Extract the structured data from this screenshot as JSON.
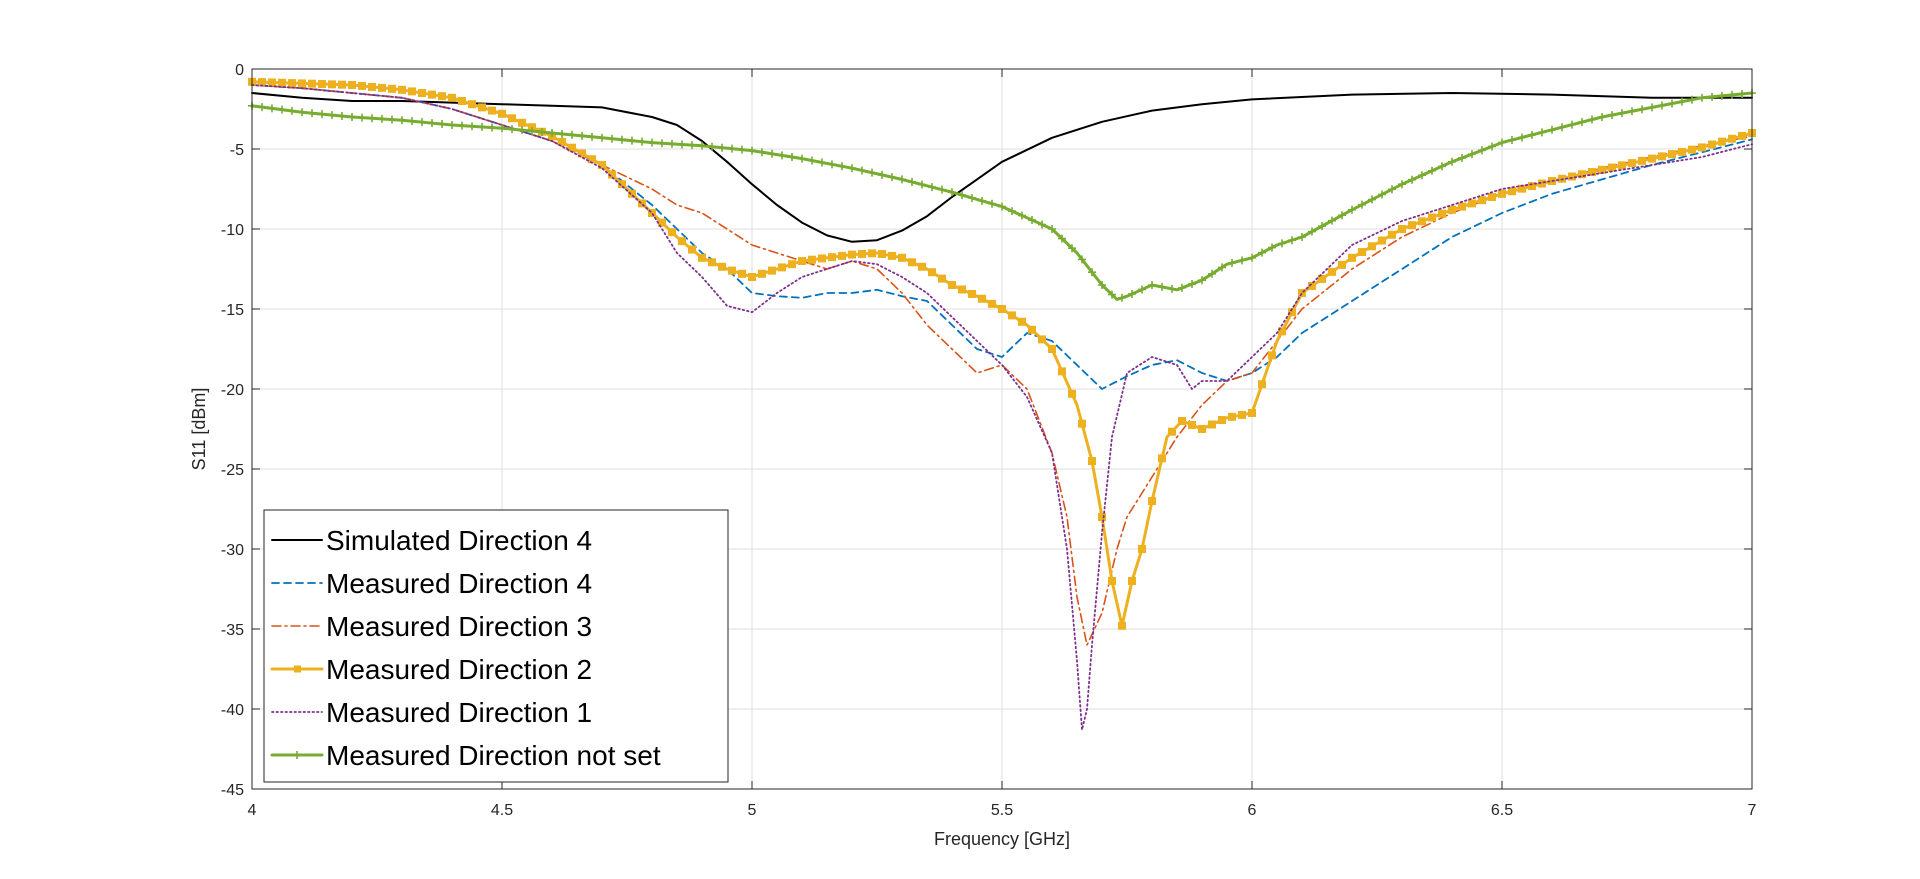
{
  "chart_data": {
    "type": "line",
    "title": "",
    "xlabel": "Frequency [GHz]",
    "ylabel": "S11 [dBm]",
    "xlim": [
      4,
      7
    ],
    "ylim": [
      -45,
      0
    ],
    "xticks": [
      "4",
      "4.5",
      "5",
      "5.5",
      "6",
      "6.5",
      "7"
    ],
    "yticks": [
      "0",
      "-5",
      "-10",
      "-15",
      "-20",
      "-25",
      "-30",
      "-35",
      "-40",
      "-45"
    ],
    "grid": true,
    "legend_position": "bottom-left",
    "series": [
      {
        "name": "Simulated Direction 4",
        "color": "#000000",
        "style": "solid",
        "marker": "none",
        "x": [
          4.0,
          4.1,
          4.2,
          4.3,
          4.4,
          4.5,
          4.6,
          4.7,
          4.8,
          4.85,
          4.9,
          4.95,
          5.0,
          5.05,
          5.1,
          5.15,
          5.2,
          5.25,
          5.3,
          5.35,
          5.4,
          5.45,
          5.5,
          5.6,
          5.7,
          5.8,
          5.9,
          6.0,
          6.2,
          6.4,
          6.6,
          6.8,
          7.0
        ],
        "y": [
          -1.5,
          -1.8,
          -2.0,
          -2.0,
          -2.1,
          -2.2,
          -2.3,
          -2.4,
          -3.0,
          -3.5,
          -4.5,
          -5.8,
          -7.2,
          -8.5,
          -9.6,
          -10.4,
          -10.8,
          -10.7,
          -10.1,
          -9.2,
          -8.0,
          -6.9,
          -5.8,
          -4.3,
          -3.3,
          -2.6,
          -2.2,
          -1.9,
          -1.6,
          -1.5,
          -1.6,
          -1.8,
          -1.8
        ]
      },
      {
        "name": "Measured Direction 4",
        "color": "#0072BD",
        "style": "dashed",
        "marker": "none",
        "x": [
          4.0,
          4.1,
          4.2,
          4.3,
          4.4,
          4.5,
          4.6,
          4.7,
          4.8,
          4.85,
          4.9,
          4.95,
          5.0,
          5.05,
          5.1,
          5.15,
          5.2,
          5.25,
          5.3,
          5.35,
          5.4,
          5.45,
          5.5,
          5.55,
          5.6,
          5.65,
          5.7,
          5.75,
          5.8,
          5.85,
          5.9,
          5.95,
          6.0,
          6.05,
          6.1,
          6.2,
          6.3,
          6.4,
          6.5,
          6.6,
          6.7,
          6.8,
          6.9,
          7.0
        ],
        "y": [
          -1.0,
          -1.2,
          -1.5,
          -1.8,
          -2.5,
          -3.5,
          -4.5,
          -6.0,
          -8.5,
          -10.0,
          -11.5,
          -12.5,
          -14.0,
          -14.2,
          -14.3,
          -14.0,
          -14.0,
          -13.8,
          -14.2,
          -14.5,
          -16.0,
          -17.5,
          -18.0,
          -16.5,
          -17.0,
          -18.5,
          -20.0,
          -19.2,
          -18.5,
          -18.2,
          -19.0,
          -19.5,
          -19.0,
          -18.0,
          -16.5,
          -14.5,
          -12.5,
          -10.5,
          -9.0,
          -7.8,
          -6.9,
          -6.0,
          -5.2,
          -4.4
        ]
      },
      {
        "name": "Measured Direction 3",
        "color": "#D95319",
        "style": "dashdot",
        "marker": "none",
        "x": [
          4.0,
          4.1,
          4.2,
          4.3,
          4.4,
          4.5,
          4.6,
          4.7,
          4.8,
          4.85,
          4.9,
          4.95,
          5.0,
          5.05,
          5.1,
          5.15,
          5.2,
          5.25,
          5.3,
          5.35,
          5.4,
          5.45,
          5.5,
          5.55,
          5.6,
          5.63,
          5.65,
          5.67,
          5.7,
          5.73,
          5.75,
          5.8,
          5.85,
          5.9,
          5.95,
          6.0,
          6.05,
          6.1,
          6.2,
          6.3,
          6.4,
          6.5,
          6.6,
          6.7,
          6.8,
          6.9,
          7.0
        ],
        "y": [
          -1.0,
          -1.2,
          -1.5,
          -1.8,
          -2.5,
          -3.5,
          -4.5,
          -6.0,
          -7.5,
          -8.5,
          -9.0,
          -10.0,
          -11.0,
          -11.5,
          -12.0,
          -12.5,
          -12.0,
          -12.5,
          -14.0,
          -16.0,
          -17.5,
          -19.0,
          -18.5,
          -20.0,
          -24.0,
          -28.0,
          -33.0,
          -36.0,
          -34.0,
          -30.0,
          -28.0,
          -25.5,
          -23.0,
          -21.0,
          -19.5,
          -19.0,
          -17.0,
          -15.0,
          -12.5,
          -10.5,
          -9.0,
          -7.8,
          -7.0,
          -6.2,
          -5.5,
          -4.8,
          -4.2
        ]
      },
      {
        "name": "Measured Direction 2",
        "color": "#EDB120",
        "style": "solid-thick",
        "marker": "square",
        "x": [
          4.0,
          4.1,
          4.2,
          4.3,
          4.4,
          4.5,
          4.6,
          4.7,
          4.75,
          4.8,
          4.85,
          4.9,
          4.95,
          5.0,
          5.05,
          5.1,
          5.15,
          5.2,
          5.25,
          5.3,
          5.35,
          5.4,
          5.45,
          5.5,
          5.55,
          5.6,
          5.65,
          5.68,
          5.7,
          5.72,
          5.74,
          5.76,
          5.78,
          5.8,
          5.83,
          5.86,
          5.9,
          5.95,
          6.0,
          6.05,
          6.1,
          6.2,
          6.3,
          6.4,
          6.5,
          6.6,
          6.7,
          6.8,
          6.9,
          7.0
        ],
        "y": [
          -0.8,
          -0.9,
          -1.0,
          -1.3,
          -1.8,
          -2.8,
          -4.2,
          -6.0,
          -7.5,
          -9.0,
          -10.5,
          -11.8,
          -12.5,
          -13.0,
          -12.5,
          -12.0,
          -11.8,
          -11.6,
          -11.5,
          -11.8,
          -12.5,
          -13.5,
          -14.2,
          -15.0,
          -16.0,
          -17.5,
          -21.0,
          -24.5,
          -28.0,
          -32.0,
          -34.8,
          -32.0,
          -30.0,
          -27.0,
          -23.0,
          -22.0,
          -22.5,
          -21.8,
          -21.5,
          -17.0,
          -14.0,
          -11.8,
          -10.0,
          -8.8,
          -7.8,
          -7.0,
          -6.3,
          -5.6,
          -4.9,
          -4.0
        ]
      },
      {
        "name": "Measured Direction 1",
        "color": "#7E2F8E",
        "style": "dotted",
        "marker": "none",
        "x": [
          4.0,
          4.1,
          4.2,
          4.3,
          4.4,
          4.5,
          4.6,
          4.7,
          4.8,
          4.85,
          4.9,
          4.95,
          5.0,
          5.05,
          5.1,
          5.15,
          5.2,
          5.25,
          5.3,
          5.35,
          5.4,
          5.45,
          5.5,
          5.55,
          5.6,
          5.63,
          5.65,
          5.66,
          5.67,
          5.68,
          5.7,
          5.72,
          5.75,
          5.8,
          5.85,
          5.88,
          5.9,
          5.95,
          6.0,
          6.05,
          6.1,
          6.2,
          6.3,
          6.4,
          6.5,
          6.6,
          6.7,
          6.8,
          6.9,
          7.0
        ],
        "y": [
          -1.0,
          -1.2,
          -1.5,
          -1.8,
          -2.5,
          -3.5,
          -4.5,
          -6.2,
          -9.0,
          -11.5,
          -13.0,
          -14.8,
          -15.2,
          -14.0,
          -13.0,
          -12.5,
          -12.0,
          -12.2,
          -13.0,
          -14.0,
          -15.5,
          -17.0,
          -18.5,
          -20.5,
          -24.0,
          -30.0,
          -37.0,
          -41.3,
          -40.0,
          -36.0,
          -29.0,
          -23.0,
          -19.0,
          -18.0,
          -18.5,
          -20.0,
          -19.5,
          -19.5,
          -18.0,
          -16.5,
          -14.0,
          -11.0,
          -9.5,
          -8.5,
          -7.5,
          -7.0,
          -6.5,
          -6.0,
          -5.5,
          -4.7
        ]
      },
      {
        "name": "Measured Direction not set",
        "color": "#77AC30",
        "style": "solid-thick",
        "marker": "plus",
        "x": [
          4.0,
          4.1,
          4.2,
          4.3,
          4.4,
          4.5,
          4.6,
          4.7,
          4.8,
          4.9,
          5.0,
          5.1,
          5.2,
          5.3,
          5.4,
          5.5,
          5.55,
          5.6,
          5.65,
          5.7,
          5.73,
          5.75,
          5.8,
          5.85,
          5.9,
          5.95,
          6.0,
          6.05,
          6.1,
          6.2,
          6.3,
          6.4,
          6.5,
          6.6,
          6.7,
          6.8,
          6.9,
          7.0
        ],
        "y": [
          -2.3,
          -2.7,
          -3.0,
          -3.2,
          -3.5,
          -3.7,
          -4.0,
          -4.3,
          -4.6,
          -4.8,
          -5.1,
          -5.6,
          -6.2,
          -6.9,
          -7.7,
          -8.6,
          -9.3,
          -10.0,
          -11.5,
          -13.5,
          -14.4,
          -14.2,
          -13.5,
          -13.8,
          -13.2,
          -12.2,
          -11.8,
          -11.0,
          -10.5,
          -8.8,
          -7.2,
          -5.8,
          -4.6,
          -3.8,
          -3.0,
          -2.4,
          -1.8,
          -1.5
        ]
      }
    ]
  }
}
